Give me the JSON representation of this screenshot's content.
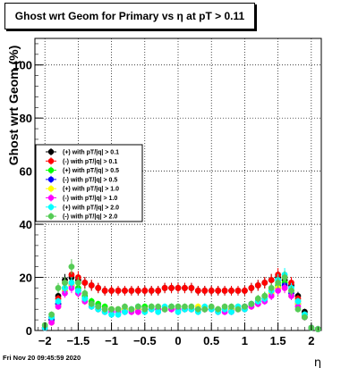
{
  "chart_data": {
    "type": "scatter",
    "title": "Ghost wrt Geom for Primary vs   η at pT > 0.11",
    "xlabel": "η",
    "ylabel": "Ghost wrt Geom (%)",
    "xlim": [
      -2.15,
      2.15
    ],
    "ylim": [
      0,
      110
    ],
    "xticks": [
      -2,
      -1.5,
      -1,
      -0.5,
      0,
      0.5,
      1,
      1.5,
      2
    ],
    "xtick_labels": [
      "−2",
      "−1.5",
      "−1",
      "−0.5",
      "0",
      "0.5",
      "1",
      "1.5",
      "2"
    ],
    "yticks": [
      0,
      20,
      40,
      60,
      80,
      100
    ],
    "ytick_labels": [
      "0",
      "20",
      "40",
      "60",
      "80",
      "100"
    ],
    "grid": true,
    "legend_position": "left-middle",
    "x": [
      -2.0,
      -1.9,
      -1.8,
      -1.7,
      -1.6,
      -1.5,
      -1.4,
      -1.3,
      -1.2,
      -1.1,
      -1.0,
      -0.9,
      -0.8,
      -0.7,
      -0.6,
      -0.5,
      -0.4,
      -0.3,
      -0.2,
      -0.1,
      0.0,
      0.1,
      0.2,
      0.3,
      0.4,
      0.5,
      0.6,
      0.7,
      0.8,
      0.9,
      1.0,
      1.1,
      1.2,
      1.3,
      1.4,
      1.5,
      1.6,
      1.7,
      1.8,
      1.9,
      2.0,
      2.1
    ],
    "series": [
      {
        "name": "(+) with pT/|q| > 0.1",
        "color": "#000000",
        "values": [
          1,
          5,
          13,
          19,
          20,
          19,
          18,
          17,
          16,
          15,
          15,
          15,
          15,
          15,
          15,
          15,
          15,
          15,
          16,
          16,
          16,
          16,
          16,
          15,
          15,
          15,
          15,
          15,
          15,
          15,
          15,
          16,
          17,
          18,
          19,
          20,
          19,
          17,
          13,
          7,
          1,
          0.5
        ]
      },
      {
        "name": "(-) with pT/|q| > 0.1",
        "color": "#ff0000",
        "values": [
          1,
          4,
          12,
          18,
          21,
          20,
          18,
          17,
          16,
          15,
          15,
          15,
          15,
          15,
          15,
          15,
          15,
          15,
          16,
          16,
          16,
          16,
          16,
          15,
          15,
          15,
          15,
          15,
          15,
          15,
          15,
          16,
          17,
          18,
          19,
          21,
          20,
          18,
          12,
          6,
          1,
          0.5
        ]
      },
      {
        "name": "(+) with pT/|q| > 0.5",
        "color": "#00ff00",
        "values": [
          1,
          4,
          10,
          16,
          18,
          16,
          13,
          11,
          10,
          9,
          8,
          8,
          8,
          8,
          9,
          9,
          9,
          8,
          8,
          9,
          9,
          8,
          8,
          8,
          8,
          8,
          8,
          8,
          8,
          9,
          9,
          10,
          11,
          13,
          15,
          17,
          18,
          15,
          11,
          6,
          1,
          0.5
        ]
      },
      {
        "name": "(-) with pT/|q| > 0.5",
        "color": "#0000ff",
        "values": [
          1,
          4,
          10,
          15,
          17,
          15,
          12,
          10,
          9,
          8,
          8,
          8,
          8,
          8,
          8,
          8,
          8,
          8,
          8,
          8,
          8,
          8,
          8,
          8,
          8,
          8,
          8,
          8,
          8,
          8,
          9,
          10,
          11,
          12,
          14,
          16,
          17,
          14,
          10,
          5,
          1,
          0.5
        ]
      },
      {
        "name": "(+) with pT/|q| > 1.0",
        "color": "#ffff00",
        "values": [
          1,
          3,
          9,
          15,
          17,
          14,
          11,
          9,
          8,
          8,
          8,
          8,
          8,
          8,
          8,
          8,
          8,
          8,
          8,
          8,
          8,
          8,
          8,
          9,
          8,
          8,
          8,
          8,
          8,
          8,
          8,
          9,
          10,
          12,
          14,
          16,
          16,
          13,
          10,
          5,
          1,
          0.5
        ]
      },
      {
        "name": "(-) with pT/|q| > 1.0",
        "color": "#ff00ff",
        "values": [
          1,
          3,
          9,
          14,
          16,
          14,
          11,
          9,
          8,
          7,
          7,
          7,
          7,
          7,
          7,
          8,
          8,
          8,
          8,
          8,
          8,
          8,
          8,
          8,
          8,
          8,
          7,
          7,
          7,
          8,
          8,
          9,
          10,
          11,
          13,
          15,
          16,
          13,
          9,
          5,
          1,
          0.5
        ]
      },
      {
        "name": "(+) with pT/|q| > 2.0",
        "color": "#00ffff",
        "values": [
          1,
          5,
          11,
          16,
          18,
          15,
          12,
          9,
          8,
          7,
          6,
          6,
          7,
          8,
          9,
          7,
          8,
          7,
          9,
          9,
          7,
          8,
          8,
          7,
          9,
          8,
          7,
          8,
          7,
          9,
          8,
          10,
          11,
          12,
          15,
          19,
          21,
          16,
          11,
          6,
          1,
          0.5
        ]
      },
      {
        "name": "(-) with pT/|q| > 2.0",
        "color": "#55cc55",
        "values": [
          2,
          6,
          16,
          18,
          24,
          18,
          14,
          10,
          9,
          8,
          8,
          8,
          9,
          8,
          9,
          8,
          9,
          9,
          8,
          9,
          9,
          9,
          9,
          8,
          8,
          9,
          8,
          9,
          9,
          8,
          9,
          10,
          12,
          13,
          16,
          18,
          20,
          15,
          8,
          5,
          1,
          0.5
        ]
      }
    ]
  },
  "footer": {
    "date": "Fri Nov 20 09:45:59 2020"
  }
}
